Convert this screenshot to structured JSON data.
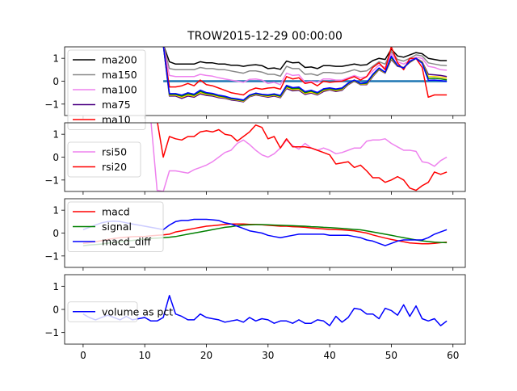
{
  "chart_data": {
    "type": "line",
    "title": "TROW2015-12-29 00:00:00",
    "x_range": [
      -3,
      62
    ],
    "x_ticks": [
      0,
      10,
      20,
      30,
      40,
      50,
      60
    ],
    "panels": [
      {
        "id": "price",
        "ylim": [
          -1.5,
          1.5
        ],
        "yticks": [
          -1,
          0,
          1
        ],
        "legend_position": "upper-left",
        "legend": [
          "ma200",
          "ma150",
          "ma100",
          "ma75",
          "ma10"
        ],
        "series": [
          {
            "name": "ma200",
            "color": "#000000",
            "values": [
              1.6,
              1.6,
              1.6,
              1.6,
              1.6,
              1.6,
              1.6,
              1.6,
              1.6,
              1.6,
              1.6,
              1.6,
              1.6,
              1.6,
              0.85,
              0.75,
              0.75,
              0.75,
              0.75,
              0.85,
              0.8,
              0.8,
              0.75,
              0.75,
              0.7,
              0.7,
              0.65,
              0.7,
              0.72,
              0.68,
              0.55,
              0.58,
              0.52,
              0.88,
              0.8,
              0.82,
              0.6,
              0.62,
              0.55,
              0.68,
              0.68,
              0.65,
              0.65,
              0.7,
              0.75,
              0.7,
              0.72,
              0.9,
              1.0,
              0.95,
              1.4,
              1.1,
              1.05,
              1.15,
              1.25,
              1.2,
              1.0,
              0.95,
              0.9,
              0.9
            ]
          },
          {
            "name": "ma150",
            "color": "#888888",
            "values": [
              1.6,
              1.6,
              1.6,
              1.6,
              1.6,
              1.6,
              1.6,
              1.6,
              1.6,
              1.6,
              1.6,
              1.6,
              1.6,
              1.6,
              0.55,
              0.5,
              0.5,
              0.5,
              0.5,
              0.6,
              0.55,
              0.55,
              0.5,
              0.5,
              0.45,
              0.4,
              0.35,
              0.45,
              0.45,
              0.4,
              0.3,
              0.3,
              0.22,
              0.65,
              0.55,
              0.55,
              0.3,
              0.32,
              0.25,
              0.38,
              0.38,
              0.35,
              0.35,
              0.42,
              0.5,
              0.42,
              0.45,
              0.65,
              0.85,
              0.75,
              1.3,
              0.95,
              0.88,
              1.0,
              1.15,
              1.1,
              0.8,
              0.75,
              0.7,
              0.68
            ]
          },
          {
            "name": "ma100",
            "color": "#ee82ee",
            "values": [
              1.6,
              1.6,
              1.6,
              1.6,
              1.6,
              1.6,
              1.6,
              1.6,
              1.6,
              1.6,
              1.6,
              1.6,
              1.6,
              1.6,
              0.25,
              0.2,
              0.2,
              0.2,
              0.2,
              0.3,
              0.25,
              0.22,
              0.15,
              0.1,
              0.05,
              0.0,
              -0.05,
              0.08,
              0.1,
              0.05,
              -0.1,
              -0.05,
              -0.15,
              0.35,
              0.25,
              0.28,
              -0.05,
              0.0,
              -0.05,
              0.1,
              0.1,
              0.05,
              0.05,
              0.15,
              0.25,
              0.15,
              0.2,
              0.45,
              0.7,
              0.6,
              1.2,
              0.85,
              0.75,
              0.9,
              1.05,
              1.0,
              0.65,
              0.6,
              0.5,
              0.48
            ]
          },
          {
            "name": "ma75",
            "color": "#4b0082",
            "values": [
              1.6,
              1.6,
              1.6,
              1.6,
              1.6,
              1.6,
              1.6,
              1.6,
              1.6,
              1.6,
              1.6,
              1.6,
              1.6,
              1.6,
              -0.65,
              -0.65,
              -0.75,
              -0.65,
              -0.7,
              -0.55,
              -0.62,
              -0.65,
              -0.72,
              -0.75,
              -0.82,
              -0.85,
              -0.9,
              -0.68,
              -0.6,
              -0.65,
              -0.7,
              -0.65,
              -0.72,
              -0.32,
              -0.42,
              -0.4,
              -0.58,
              -0.52,
              -0.6,
              -0.45,
              -0.38,
              -0.45,
              -0.4,
              -0.15,
              0.0,
              -0.15,
              -0.15,
              0.2,
              0.5,
              0.35,
              0.95,
              0.65,
              0.6,
              0.82,
              1.0,
              0.85,
              0.3,
              0.28,
              0.25,
              0.2
            ]
          },
          {
            "name": "ma10",
            "color": "#ff0000",
            "values": [
              1.6,
              1.6,
              1.6,
              1.6,
              1.6,
              1.6,
              1.6,
              1.6,
              1.6,
              1.6,
              1.6,
              1.6,
              1.6,
              1.6,
              -0.25,
              -0.25,
              -0.2,
              -0.1,
              -0.2,
              0.05,
              -0.15,
              -0.2,
              -0.3,
              -0.4,
              -0.5,
              -0.55,
              -0.6,
              -0.4,
              -0.3,
              -0.35,
              -0.3,
              -0.28,
              -0.35,
              0.2,
              0.1,
              0.15,
              -0.1,
              -0.05,
              -0.2,
              0.0,
              -0.05,
              -0.02,
              0.0,
              0.1,
              0.2,
              0.05,
              0.2,
              0.6,
              0.8,
              0.5,
              1.5,
              0.8,
              0.5,
              1.0,
              1.0,
              0.6,
              -0.7,
              -0.6,
              -0.6,
              -0.6
            ]
          }
        ],
        "baseline": {
          "color": "#1f77b4",
          "from_x": 13,
          "values_from_x": 0
        }
      },
      {
        "id": "rsi",
        "ylim": [
          -1.5,
          1.5
        ],
        "yticks": [
          -1,
          0,
          1
        ],
        "legend_position": "left",
        "legend": [
          "rsi50",
          "rsi20"
        ],
        "series": [
          {
            "name": "rsi50",
            "color": "#ee82ee",
            "values": [
              1.6,
              1.6,
              1.6,
              1.6,
              1.6,
              1.6,
              1.6,
              1.6,
              1.6,
              1.6,
              1.6,
              1.6,
              -1.45,
              -1.5,
              -0.6,
              -0.6,
              -0.65,
              -0.7,
              -0.55,
              -0.45,
              -0.35,
              -0.2,
              0.0,
              0.2,
              0.3,
              0.6,
              0.75,
              0.55,
              0.3,
              0.1,
              0.0,
              0.15,
              0.4,
              0.75,
              0.5,
              0.35,
              0.6,
              0.4,
              0.3,
              0.4,
              0.3,
              0.15,
              0.2,
              0.3,
              0.4,
              0.4,
              0.7,
              0.75,
              0.75,
              0.8,
              0.6,
              0.45,
              0.3,
              0.3,
              0.25,
              -0.2,
              -0.25,
              -0.4,
              -0.15,
              0.0
            ]
          },
          {
            "name": "rsi20",
            "color": "#ff0000",
            "values": [
              1.6,
              1.6,
              1.6,
              1.6,
              1.6,
              1.6,
              1.6,
              1.6,
              1.6,
              1.6,
              1.6,
              1.6,
              1.6,
              0.0,
              0.9,
              0.8,
              0.75,
              0.9,
              0.9,
              1.1,
              1.15,
              1.1,
              1.2,
              1.0,
              0.95,
              0.7,
              0.9,
              1.1,
              1.4,
              1.3,
              0.8,
              0.9,
              0.4,
              0.8,
              0.45,
              0.45,
              0.45,
              0.4,
              0.3,
              0.2,
              0.1,
              -0.3,
              -0.25,
              -0.2,
              -0.45,
              -0.35,
              -0.6,
              -0.9,
              -0.9,
              -1.1,
              -1.0,
              -0.85,
              -1.0,
              -1.35,
              -1.45,
              -1.25,
              -1.1,
              -0.65,
              -0.75,
              -0.65
            ]
          }
        ]
      },
      {
        "id": "macd",
        "ylim": [
          -1.5,
          1.5
        ],
        "yticks": [
          -1,
          0,
          1
        ],
        "legend_position": "upper-left",
        "legend": [
          "macd",
          "signal",
          "macd_diff"
        ],
        "series": [
          {
            "name": "macd",
            "color": "#ff0000",
            "values": [
              -0.45,
              -0.42,
              -0.38,
              -0.33,
              -0.28,
              -0.24,
              -0.2,
              -0.18,
              -0.16,
              -0.15,
              -0.15,
              -0.12,
              -0.1,
              -0.08,
              -0.05,
              0.05,
              0.1,
              0.15,
              0.2,
              0.25,
              0.3,
              0.32,
              0.35,
              0.38,
              0.4,
              0.4,
              0.4,
              0.38,
              0.38,
              0.36,
              0.34,
              0.32,
              0.3,
              0.3,
              0.28,
              0.27,
              0.25,
              0.22,
              0.2,
              0.18,
              0.16,
              0.15,
              0.14,
              0.12,
              0.1,
              0.05,
              0.0,
              -0.08,
              -0.15,
              -0.22,
              -0.28,
              -0.33,
              -0.38,
              -0.43,
              -0.45,
              -0.47,
              -0.47,
              -0.45,
              -0.42,
              -0.4
            ]
          },
          {
            "name": "signal",
            "color": "#008000",
            "values": [
              -0.55,
              -0.52,
              -0.5,
              -0.48,
              -0.44,
              -0.41,
              -0.38,
              -0.35,
              -0.32,
              -0.29,
              -0.27,
              -0.24,
              -0.22,
              -0.2,
              -0.18,
              -0.15,
              -0.1,
              -0.05,
              0.0,
              0.05,
              0.1,
              0.15,
              0.2,
              0.25,
              0.28,
              0.32,
              0.35,
              0.36,
              0.37,
              0.37,
              0.36,
              0.35,
              0.34,
              0.33,
              0.32,
              0.31,
              0.3,
              0.28,
              0.27,
              0.25,
              0.24,
              0.22,
              0.2,
              0.18,
              0.16,
              0.14,
              0.1,
              0.05,
              0.0,
              -0.05,
              -0.1,
              -0.15,
              -0.2,
              -0.25,
              -0.3,
              -0.34,
              -0.37,
              -0.4,
              -0.41,
              -0.42
            ]
          },
          {
            "name": "macd_diff",
            "color": "#0000ff",
            "values": [
              0.15,
              0.25,
              0.35,
              0.45,
              0.5,
              0.52,
              0.5,
              0.45,
              0.4,
              0.35,
              0.3,
              0.25,
              0.2,
              0.15,
              0.35,
              0.5,
              0.55,
              0.55,
              0.6,
              0.6,
              0.6,
              0.58,
              0.55,
              0.45,
              0.4,
              0.3,
              0.2,
              0.1,
              0.05,
              0.0,
              -0.1,
              -0.15,
              -0.2,
              -0.15,
              -0.1,
              -0.05,
              -0.05,
              -0.05,
              -0.05,
              -0.05,
              -0.1,
              -0.1,
              -0.1,
              -0.1,
              -0.15,
              -0.2,
              -0.3,
              -0.35,
              -0.45,
              -0.55,
              -0.45,
              -0.35,
              -0.3,
              -0.3,
              -0.3,
              -0.3,
              -0.2,
              -0.05,
              0.05,
              0.15
            ]
          }
        ]
      },
      {
        "id": "volume",
        "ylim": [
          -1.5,
          1.5
        ],
        "yticks": [
          -1,
          0,
          1
        ],
        "legend_position": "left",
        "legend": [
          "volume as pct"
        ],
        "series": [
          {
            "name": "volume as pct",
            "color": "#0000ff",
            "values": [
              -0.2,
              -0.35,
              -0.45,
              -0.35,
              -0.25,
              -0.35,
              -0.45,
              -0.3,
              -0.45,
              -0.4,
              -0.35,
              -0.5,
              -0.5,
              -0.35,
              0.6,
              -0.2,
              -0.3,
              -0.45,
              -0.45,
              -0.2,
              -0.35,
              -0.4,
              -0.45,
              -0.55,
              -0.5,
              -0.45,
              -0.55,
              -0.35,
              -0.5,
              -0.4,
              -0.45,
              -0.6,
              -0.5,
              -0.5,
              -0.6,
              -0.45,
              -0.6,
              -0.6,
              -0.45,
              -0.5,
              -0.7,
              -0.3,
              -0.55,
              -0.35,
              0.05,
              0.0,
              -0.2,
              -0.2,
              -0.4,
              0.05,
              -0.05,
              -0.25,
              0.2,
              -0.3,
              0.15,
              -0.4,
              -0.5,
              -0.4,
              -0.7,
              -0.5
            ]
          }
        ]
      }
    ]
  }
}
